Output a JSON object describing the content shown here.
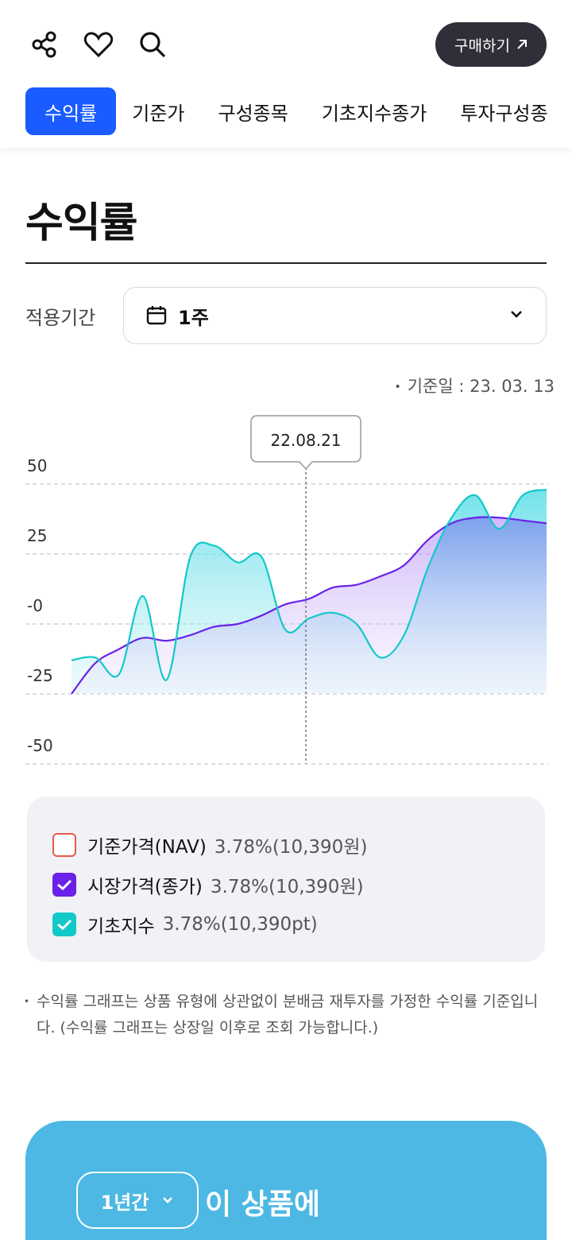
{
  "header": {
    "icons": [
      "share-icon",
      "heart-icon",
      "search-icon"
    ],
    "buy_label": "구매하기",
    "buy_icon": "arrow-up-right-icon"
  },
  "tabs": [
    {
      "label": "수익률",
      "active": true
    },
    {
      "label": "기준가",
      "active": false
    },
    {
      "label": "구성종목",
      "active": false
    },
    {
      "label": "기초지수종가",
      "active": false
    },
    {
      "label": "투자구성종",
      "active": false
    }
  ],
  "section": {
    "title": "수익률"
  },
  "period": {
    "label": "적용기간",
    "value": "1주",
    "icon": "calendar-icon"
  },
  "base_date": "기준일 : 23. 03. 13",
  "chart_data": {
    "type": "area",
    "x": [
      0,
      0.05,
      0.1,
      0.15,
      0.2,
      0.25,
      0.3,
      0.35,
      0.4,
      0.45,
      0.5,
      0.55,
      0.6,
      0.65,
      0.7,
      0.75,
      0.8,
      0.85,
      0.9,
      0.95,
      1.0
    ],
    "tooltip_label": "22.08.21",
    "y_ticks": [
      "50",
      "25",
      "-0",
      "-25",
      "-50"
    ],
    "ylim": [
      -50,
      50
    ],
    "grid": true,
    "series": [
      {
        "name": "기초지수",
        "color": "#13c8c8",
        "values": [
          -13,
          -12,
          -18,
          10,
          -20,
          24,
          28,
          22,
          24,
          -2,
          2,
          4,
          0,
          -12,
          -4,
          20,
          38,
          46,
          34,
          46,
          48
        ]
      },
      {
        "name": "시장가격(종가)",
        "color": "#6a22e8",
        "values": [
          -25,
          -14,
          -9,
          -5,
          -6,
          -4,
          -1,
          0,
          3,
          7,
          9,
          13,
          14,
          17,
          21,
          30,
          36,
          38,
          38,
          37,
          36
        ]
      }
    ]
  },
  "legend": [
    {
      "name": "기준가격(NAV)",
      "value": "3.78%(10,390원)",
      "checked": false,
      "color": "#e65a4a"
    },
    {
      "name": "시장가격(종가)",
      "value": "3.78%(10,390원)",
      "checked": true,
      "color": "#6a22e8"
    },
    {
      "name": "기초지수",
      "value": "3.78%(10,390pt)",
      "checked": true,
      "color": "#13c8c8"
    }
  ],
  "note": "수익률 그래프는 상품 유형에 상관없이 분배금 재투자를 가정한 수익률 기준입니다. (수익률 그래프는 상장일 이후로 조회 가능합니다.)",
  "promo": {
    "select_value": "1년간",
    "text": "이 상품에"
  }
}
